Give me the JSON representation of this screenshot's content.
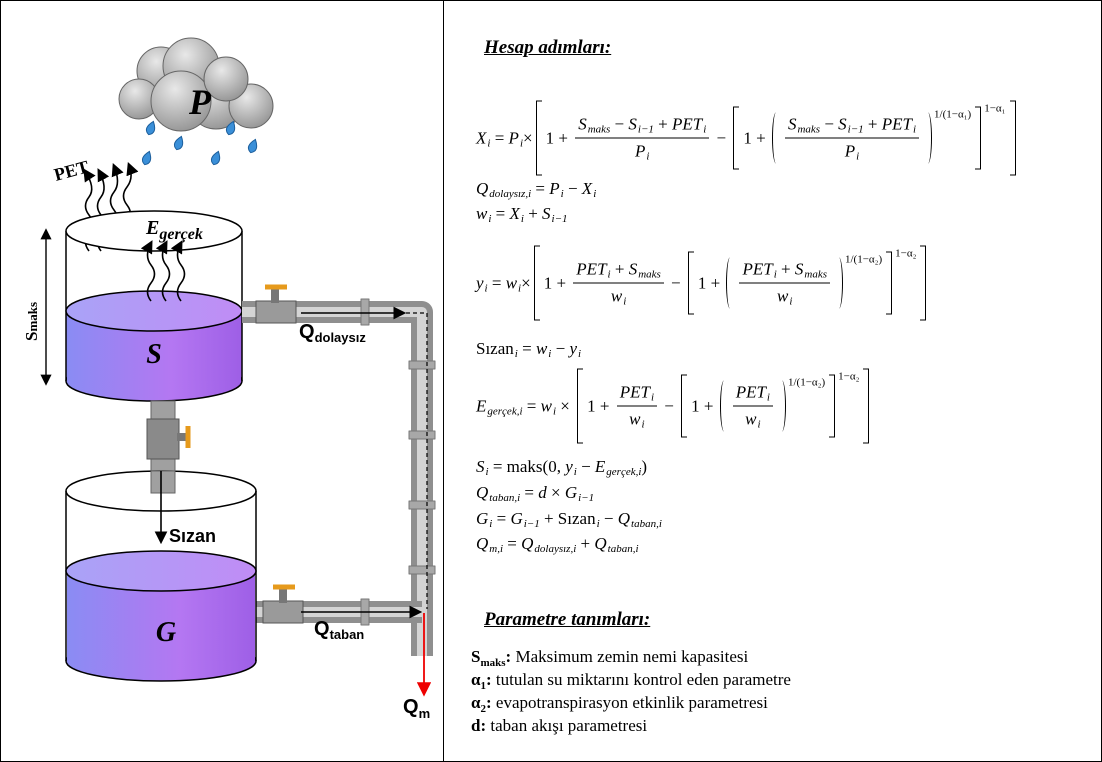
{
  "diagram": {
    "P": "P",
    "PET": "PET",
    "E_gercek": {
      "base": "E",
      "sub": "gerçek"
    },
    "S_maks": {
      "base": "S",
      "sub": "maks"
    },
    "S": "S",
    "G": "G",
    "Q_dolaysiz": {
      "base": "Q",
      "sub": "dolaysız"
    },
    "sizan": "Sızan",
    "Q_taban": {
      "base": "Q",
      "sub": "taban"
    },
    "Q_m": {
      "base": "Q",
      "sub": "m"
    }
  },
  "steps": {
    "title": "Hesap adımları:",
    "equations": [
      [
        {
          "v": "X",
          "sub": "i"
        },
        " = ",
        {
          "v": "P",
          "sub": "i"
        },
        "×",
        {
          "br": [
            "1 + ",
            {
              "frac": [
                [
                  {
                    "v": "S",
                    "sub": "maks"
                  },
                  " − ",
                  {
                    "v": "S",
                    "sub": "i−1"
                  },
                  " + ",
                  {
                    "v": "PET",
                    "sub": "i"
                  }
                ],
                [
                  {
                    "v": "P",
                    "sub": "i"
                  }
                ]
              ]
            },
            " − ",
            {
              "br": [
                "1 + ",
                {
                  "par": [
                    {
                      "frac": [
                        [
                          {
                            "v": "S",
                            "sub": "maks"
                          },
                          " − ",
                          {
                            "v": "S",
                            "sub": "i−1"
                          },
                          " + ",
                          {
                            "v": "PET",
                            "sub": "i"
                          }
                        ],
                        [
                          {
                            "v": "P",
                            "sub": "i"
                          }
                        ]
                      ]
                    }
                  ],
                  "sup": "1/(1−α₁)"
                }
              ],
              "sup": "1−α₁"
            }
          ]
        }
      ],
      [
        {
          "v": "Q",
          "sub": "dolaysız,i"
        },
        " = ",
        {
          "v": "P",
          "sub": "i"
        },
        " − ",
        {
          "v": "X",
          "sub": "i"
        }
      ],
      [
        {
          "v": "w",
          "sub": "i"
        },
        " = ",
        {
          "v": "X",
          "sub": "i"
        },
        " + ",
        {
          "v": "S",
          "sub": "i−1"
        }
      ],
      [
        {
          "v": "y",
          "sub": "i"
        },
        " = ",
        {
          "v": "w",
          "sub": "i"
        },
        "×",
        {
          "br": [
            "1 + ",
            {
              "frac": [
                [
                  {
                    "v": "PET",
                    "sub": "i"
                  },
                  " + ",
                  {
                    "v": "S",
                    "sub": "maks"
                  }
                ],
                [
                  {
                    "v": "w",
                    "sub": "i"
                  }
                ]
              ]
            },
            " − ",
            {
              "br": [
                "1 + ",
                {
                  "par": [
                    {
                      "frac": [
                        [
                          {
                            "v": "PET",
                            "sub": "i"
                          },
                          " + ",
                          {
                            "v": "S",
                            "sub": "maks"
                          }
                        ],
                        [
                          {
                            "v": "w",
                            "sub": "i"
                          }
                        ]
                      ]
                    }
                  ],
                  "sup": "1/(1−α₂)"
                }
              ],
              "sup": "1−α₂"
            }
          ]
        }
      ],
      [
        {
          "u": "Sızan",
          "sub": "i"
        },
        " = ",
        {
          "v": "w",
          "sub": "i"
        },
        " − ",
        {
          "v": "y",
          "sub": "i"
        }
      ],
      [
        {
          "v": "E",
          "sub": "gerçek,i"
        },
        " = ",
        {
          "v": "w",
          "sub": "i"
        },
        " × ",
        {
          "br": [
            "1 + ",
            {
              "frac": [
                [
                  {
                    "v": "PET",
                    "sub": "i"
                  }
                ],
                [
                  {
                    "v": "w",
                    "sub": "i"
                  }
                ]
              ]
            },
            " − ",
            {
              "br": [
                "1 + ",
                {
                  "par": [
                    {
                      "frac": [
                        [
                          {
                            "v": "PET",
                            "sub": "i"
                          }
                        ],
                        [
                          {
                            "v": "w",
                            "sub": "i"
                          }
                        ]
                      ]
                    }
                  ],
                  "sup": "1/(1−α₂)"
                }
              ],
              "sup": "1−α₂"
            }
          ]
        }
      ],
      [
        {
          "v": "S",
          "sub": "i"
        },
        " = maks(0, ",
        {
          "v": "y",
          "sub": "i"
        },
        " − ",
        {
          "v": "E",
          "sub": "gerçek,i"
        },
        ")"
      ],
      [
        {
          "v": "Q",
          "sub": "taban,i"
        },
        " = ",
        {
          "v": "d"
        },
        " × ",
        {
          "v": "G",
          "sub": "i−1"
        }
      ],
      [
        {
          "v": "G",
          "sub": "i"
        },
        " = ",
        {
          "v": "G",
          "sub": "i−1"
        },
        " + ",
        {
          "u": "Sızan",
          "sub": "i"
        },
        " − ",
        {
          "v": "Q",
          "sub": "taban,i"
        }
      ],
      [
        {
          "v": "Q",
          "sub": "m,i"
        },
        " = ",
        {
          "v": "Q",
          "sub": "dolaysız,i"
        },
        " + ",
        {
          "v": "Q",
          "sub": "taban,i"
        }
      ]
    ]
  },
  "parameters": {
    "title": "Parametre tanımları:",
    "items": [
      {
        "term": "S",
        "sub": "maks",
        "sep": ":",
        "desc": " Maksimum zemin nemi kapasitesi"
      },
      {
        "term": "α",
        "sub": "1",
        "sep": ":",
        "desc": " tutulan su miktarını kontrol eden parametre"
      },
      {
        "term": "α",
        "sub": "2",
        "sep": ":",
        "desc": " evapotranspirasyon etkinlik parametresi"
      },
      {
        "term": "d",
        "sep": ":",
        "desc": " taban akışı parametresi"
      }
    ]
  }
}
